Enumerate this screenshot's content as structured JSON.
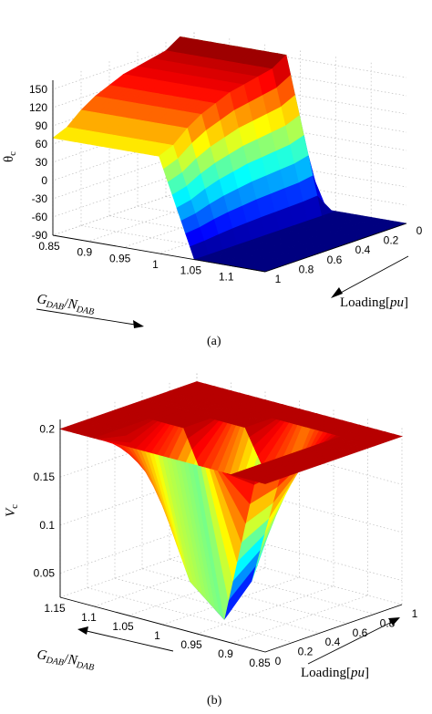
{
  "chart_data": [
    {
      "type": "surface3d",
      "caption": "(a)",
      "zlabel": "θ_c",
      "x1label": "G_DAB/N_DAB",
      "x2label": "Loading[pu]",
      "x1_ticks": [
        "0.85",
        "0.9",
        "0.95",
        "1",
        "1.05",
        "1.1"
      ],
      "x2_ticks": [
        "1",
        "0.8",
        "0.6",
        "0.4",
        "0.2",
        "0"
      ],
      "z_ticks": [
        "-90",
        "-60",
        "-30",
        "0",
        "30",
        "60",
        "90",
        "120",
        "150"
      ],
      "zlim": [
        -90,
        165
      ],
      "colormap": "jet",
      "x1": [
        0.85,
        0.9,
        0.95,
        1.0,
        1.05,
        1.1,
        1.15
      ],
      "x2": [
        0,
        0.1,
        0.2,
        0.3,
        0.4,
        0.5,
        0.6,
        0.7,
        0.8,
        0.9,
        1.0
      ],
      "z_rows": [
        [
          -90,
          165,
          150,
          145,
          140,
          135,
          125,
          115,
          100,
          80,
          70
        ],
        [
          -90,
          165,
          150,
          145,
          140,
          135,
          125,
          115,
          100,
          80,
          70
        ],
        [
          -90,
          165,
          150,
          145,
          140,
          135,
          125,
          115,
          100,
          80,
          70
        ],
        [
          -90,
          165,
          150,
          145,
          140,
          135,
          125,
          115,
          100,
          80,
          70
        ],
        [
          -90,
          -90,
          -90,
          -90,
          -90,
          -90,
          -90,
          -90,
          -90,
          -90,
          -90
        ],
        [
          -90,
          -90,
          -90,
          -90,
          -90,
          -90,
          -90,
          -90,
          -90,
          -90,
          -90
        ],
        [
          -90,
          -90,
          -90,
          -90,
          -90,
          -90,
          -90,
          -90,
          -90,
          -90,
          -90
        ]
      ]
    },
    {
      "type": "surface3d",
      "caption": "(b)",
      "zlabel": "V_c",
      "x1label": "G_DAB/N_DAB",
      "x2label": "Loading[pu]",
      "x1_ticks": [
        "1.15",
        "1.1",
        "1.05",
        "1",
        "0.95",
        "0.9",
        "0.85"
      ],
      "x2_ticks": [
        "0",
        "0.2",
        "0.4",
        "0.6",
        "0.8",
        "1"
      ],
      "z_ticks": [
        "0.05",
        "0.1",
        "0.15",
        "0.2"
      ],
      "zlim": [
        0.025,
        0.21
      ],
      "colormap": "jet",
      "x1": [
        1.15,
        1.1,
        1.05,
        1.0,
        0.95,
        0.9,
        0.85
      ],
      "x2": [
        0,
        0.2,
        0.4,
        0.6,
        0.8,
        1.0
      ],
      "z_rows": [
        [
          0.2,
          0.2,
          0.2,
          0.2,
          0.2,
          0.2
        ],
        [
          0.2,
          0.2,
          0.2,
          0.2,
          0.2,
          0.2
        ],
        [
          0.2,
          0.15,
          0.2,
          0.2,
          0.2,
          0.2
        ],
        [
          0.2,
          0.06,
          0.12,
          0.2,
          0.2,
          0.2
        ],
        [
          0.2,
          0.03,
          0.06,
          0.13,
          0.2,
          0.2
        ],
        [
          0.2,
          0.2,
          0.2,
          0.2,
          0.2,
          0.2
        ],
        [
          0.2,
          0.2,
          0.2,
          0.2,
          0.2,
          0.2
        ]
      ]
    }
  ]
}
